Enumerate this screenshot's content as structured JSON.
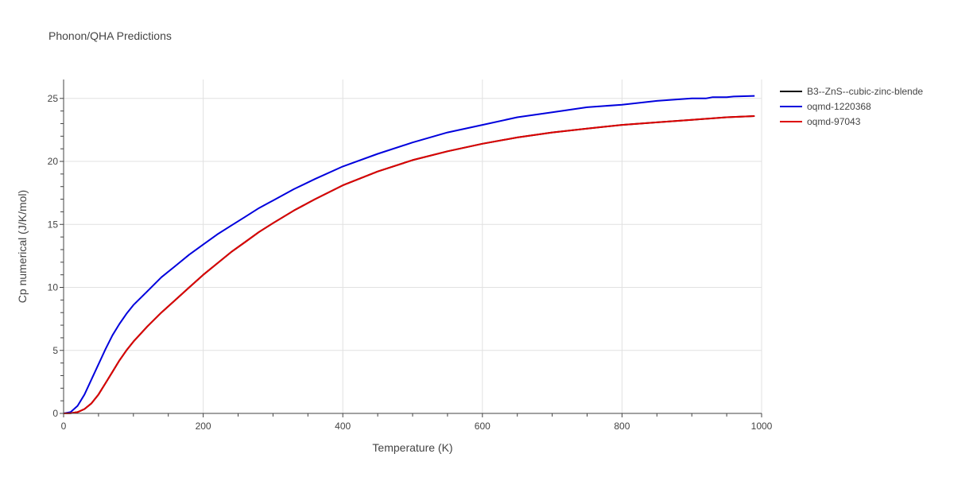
{
  "chart_data": {
    "type": "line",
    "title": "Phonon/QHA Predictions",
    "xlabel": "Temperature (K)",
    "ylabel": "Cp numerical (J/K/mol)",
    "xlim": [
      0,
      1000
    ],
    "ylim": [
      0,
      26.5
    ],
    "x_ticks": [
      0,
      200,
      400,
      600,
      800,
      1000
    ],
    "y_ticks": [
      0,
      5,
      10,
      15,
      20,
      25
    ],
    "grid": true,
    "legend_position": "top-right outside",
    "series": [
      {
        "name": "B3--ZnS--cubic-zinc-blende",
        "color": "#000000",
        "x": [
          0,
          10,
          20,
          30,
          40,
          50,
          60,
          70,
          80,
          90,
          100,
          120,
          140,
          160,
          180,
          200,
          220,
          240,
          260,
          280,
          300,
          330,
          360,
          400,
          450,
          500,
          550,
          600,
          650,
          700,
          750,
          800,
          850,
          900,
          950,
          990
        ],
        "y": [
          0,
          0.02,
          0.1,
          0.35,
          0.8,
          1.5,
          2.4,
          3.3,
          4.2,
          5.0,
          5.7,
          6.9,
          8.0,
          9.0,
          10.0,
          11.0,
          11.9,
          12.8,
          13.6,
          14.4,
          15.1,
          16.1,
          17.0,
          18.1,
          19.2,
          20.1,
          20.8,
          21.4,
          21.9,
          22.3,
          22.6,
          22.9,
          23.1,
          23.3,
          23.5,
          23.6
        ]
      },
      {
        "name": "oqmd-1220368",
        "color": "#0000dd",
        "x": [
          0,
          10,
          20,
          30,
          40,
          50,
          60,
          70,
          80,
          90,
          100,
          120,
          140,
          160,
          180,
          200,
          220,
          240,
          260,
          280,
          300,
          330,
          360,
          400,
          450,
          500,
          550,
          600,
          650,
          700,
          750,
          800,
          850,
          900,
          920,
          930,
          950,
          960,
          990
        ],
        "y": [
          0,
          0.1,
          0.6,
          1.5,
          2.7,
          3.9,
          5.1,
          6.2,
          7.1,
          7.9,
          8.6,
          9.7,
          10.8,
          11.7,
          12.6,
          13.4,
          14.2,
          14.9,
          15.6,
          16.3,
          16.9,
          17.8,
          18.6,
          19.6,
          20.6,
          21.5,
          22.3,
          22.9,
          23.5,
          23.9,
          24.3,
          24.5,
          24.8,
          25.0,
          25.0,
          25.1,
          25.1,
          25.15,
          25.2
        ]
      },
      {
        "name": "oqmd-97043",
        "color": "#dd0000",
        "x": [
          0,
          10,
          20,
          30,
          40,
          50,
          60,
          70,
          80,
          90,
          100,
          120,
          140,
          160,
          180,
          200,
          220,
          240,
          260,
          280,
          300,
          330,
          360,
          400,
          450,
          500,
          550,
          600,
          650,
          700,
          750,
          800,
          850,
          900,
          950,
          990
        ],
        "y": [
          0,
          0.02,
          0.1,
          0.35,
          0.8,
          1.5,
          2.4,
          3.3,
          4.2,
          5.0,
          5.7,
          6.9,
          8.0,
          9.0,
          10.0,
          11.0,
          11.9,
          12.8,
          13.6,
          14.4,
          15.1,
          16.1,
          17.0,
          18.1,
          19.2,
          20.1,
          20.8,
          21.4,
          21.9,
          22.3,
          22.6,
          22.9,
          23.1,
          23.3,
          23.5,
          23.6
        ]
      }
    ]
  }
}
